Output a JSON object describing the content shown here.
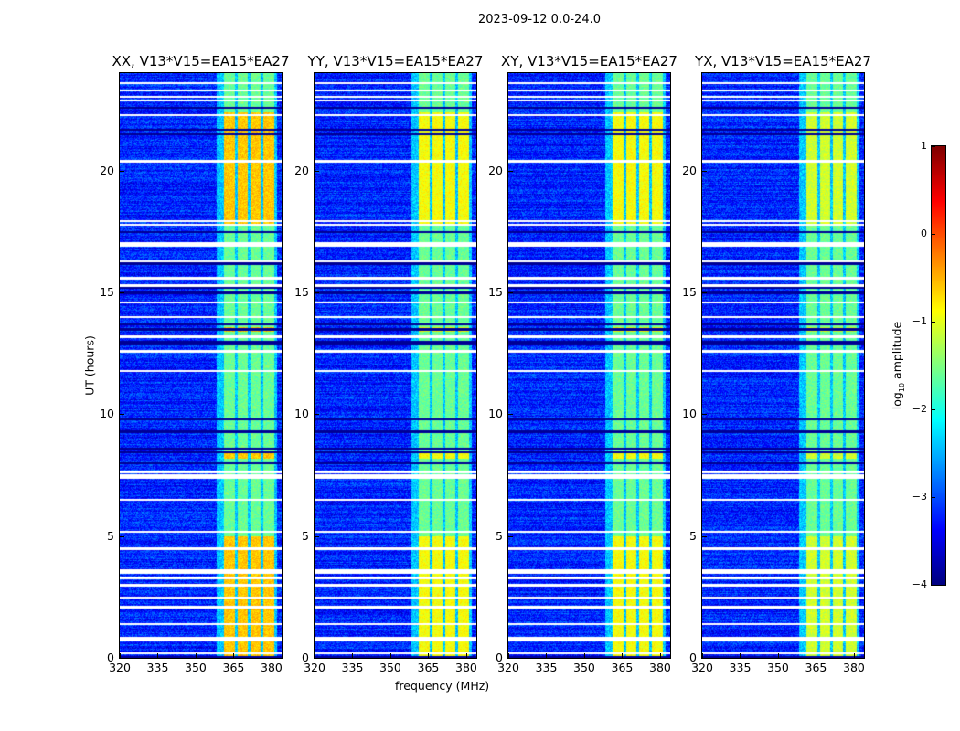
{
  "chart_data": {
    "type": "heatmap",
    "title": "2023-09-12 0.0-24.0",
    "panels": [
      {
        "title": "XX, V13*V15=EA15*EA27",
        "band_level": -0.6
      },
      {
        "title": "YY, V13*V15=EA15*EA27",
        "band_level": -0.9
      },
      {
        "title": "XY, V13*V15=EA15*EA27",
        "band_level": -0.9
      },
      {
        "title": "YX, V13*V15=EA15*EA27",
        "band_level": -1.1
      }
    ],
    "xlabel": "frequency (MHz)",
    "ylabel": "UT (hours)",
    "xlim": [
      320,
      384
    ],
    "ylim": [
      0,
      24
    ],
    "xticks": [
      320,
      335,
      350,
      365,
      380
    ],
    "yticks": [
      0,
      5,
      10,
      15,
      20
    ],
    "background_level": -3.2,
    "rfi_bands_mhz": [
      [
        361,
        365.5
      ],
      [
        366.5,
        370.5
      ],
      [
        371.5,
        375.5
      ],
      [
        376.5,
        381
      ]
    ],
    "bright_intervals_hours": [
      [
        0,
        5
      ],
      [
        8.2,
        8.5
      ],
      [
        13.4,
        13.6
      ],
      [
        17.8,
        22.4
      ]
    ],
    "flagged_hours": [
      0.2,
      0.75,
      0.85,
      1.4,
      2.1,
      2.5,
      3.0,
      3.3,
      3.5,
      3.6,
      4.5,
      5.2,
      6.5,
      7.4,
      7.5,
      7.65,
      11.8,
      12.6,
      13.2,
      14.0,
      14.6,
      15.3,
      15.6,
      16.3,
      16.95,
      17.05,
      17.8,
      17.95,
      20.4,
      22.3,
      22.9,
      23.05,
      23.3,
      23.6
    ],
    "dark_hours": [
      0.05,
      8.0,
      8.45,
      8.6,
      9.3,
      9.8,
      12.9,
      13.0,
      13.5,
      13.7,
      15.0,
      15.2,
      16.2,
      17.5,
      21.5,
      21.7,
      22.6
    ],
    "colorbar": {
      "label_main": "log",
      "label_sub": "10",
      "label_rest": " amplitude",
      "range": [
        -4,
        1
      ],
      "ticks": [
        1,
        0,
        -1,
        -2,
        -3,
        -4
      ],
      "tick_labels": [
        "1",
        "0",
        "−1",
        "−2",
        "−3",
        "−4"
      ],
      "colormap": "jet"
    }
  }
}
